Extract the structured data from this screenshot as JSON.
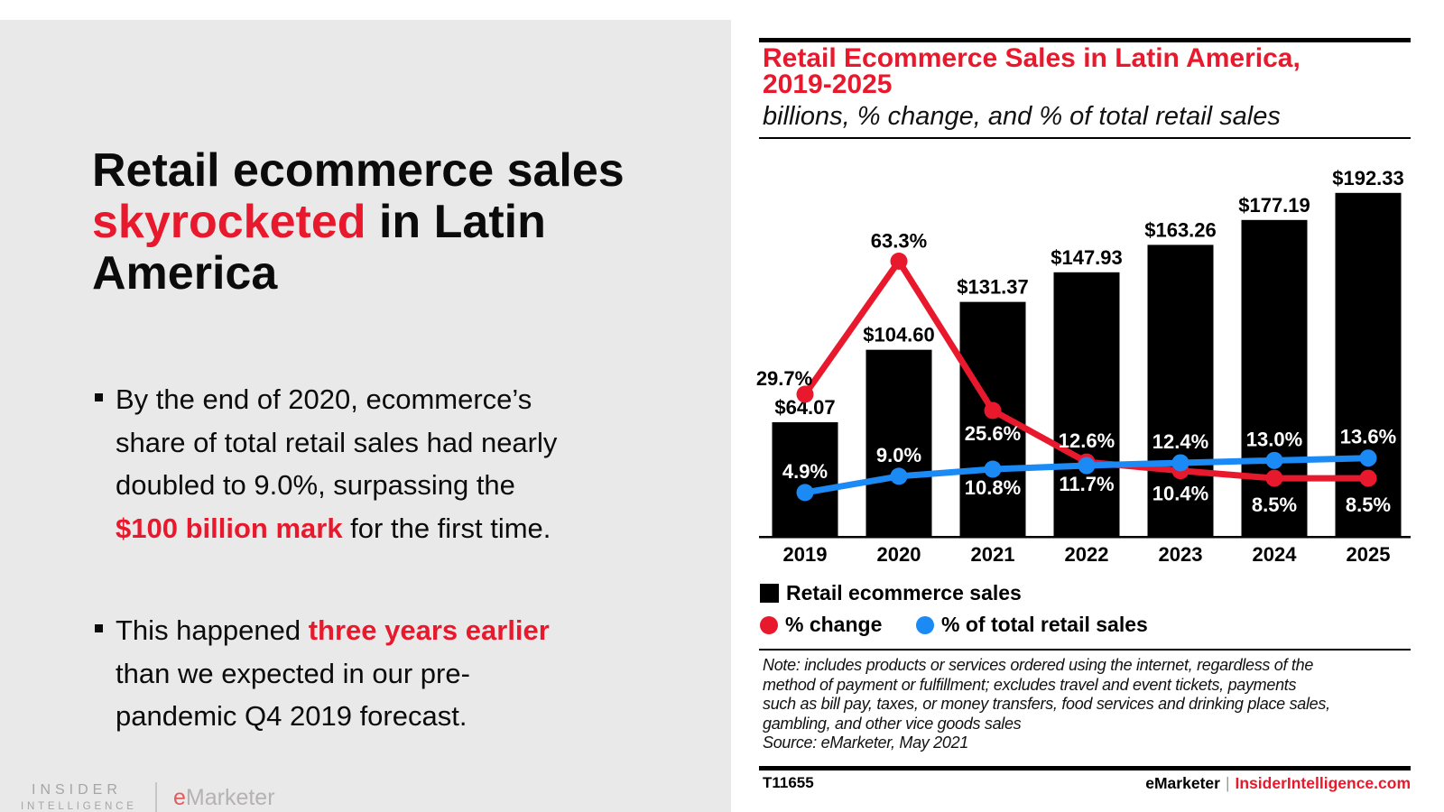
{
  "left_panel": {
    "title_segments": [
      {
        "text": "Retail ecommerce sales\n"
      },
      {
        "text": "skyrocketed",
        "highlight": true
      },
      {
        "text": " in Latin\nAmerica"
      }
    ],
    "bullets": [
      {
        "segments": [
          {
            "text": "By the end of 2020, ecommerce’s\nshare of total retail sales had nearly\ndoubled to 9.0%, surpassing the\n"
          },
          {
            "text": "$100 billion mark",
            "highlight": true
          },
          {
            "text": " for the first time."
          }
        ]
      },
      {
        "segments": [
          {
            "text": "This happened "
          },
          {
            "text": "three years earlier",
            "highlight": true
          },
          {
            "text": "\nthan we expected in our pre-\npandemic Q4 2019 forecast."
          }
        ]
      }
    ],
    "logo": {
      "line1": "INSIDER",
      "line2": "INTELLIGENCE",
      "brand_e": "e",
      "brand_rest": "Marketer"
    }
  },
  "chart_panel": {
    "title_lines": [
      "Retail Ecommerce Sales in Latin America,",
      "2019-2025"
    ],
    "subtitle": "billions, % change, and % of total retail sales",
    "note_lines": [
      "Note: includes products or services ordered using the internet, regardless of the",
      "method of payment or fulfillment; excludes travel and event tickets, payments",
      "such as bill pay, taxes, or money transfers, food services and drinking place sales,",
      "gambling, and other vice goods sales",
      "Source: eMarketer, May 2021"
    ],
    "footer": {
      "id": "T11655",
      "brand": "eMarketer",
      "separator": "|",
      "site": "InsiderIntelligence.com"
    }
  },
  "chart_data": {
    "type": "bar+line combo",
    "categories": [
      "2019",
      "2020",
      "2021",
      "2022",
      "2023",
      "2024",
      "2025"
    ],
    "series": [
      {
        "name": "Retail ecommerce sales",
        "type": "bar",
        "color": "#000000",
        "values": [
          64.07,
          104.6,
          131.37,
          147.93,
          163.26,
          177.19,
          192.33
        ],
        "labels": [
          "$64.07",
          "$104.60",
          "$131.37",
          "$147.93",
          "$163.26",
          "$177.19",
          "$192.33"
        ]
      },
      {
        "name": "% change",
        "type": "line",
        "color": "#e8192c",
        "values": [
          29.7,
          63.3,
          25.6,
          12.6,
          10.4,
          8.5,
          8.5
        ],
        "labels": [
          "29.7%",
          "63.3%",
          "25.6%",
          "12.6%",
          "10.4%",
          "8.5%",
          "8.5%"
        ]
      },
      {
        "name": "% of total retail sales",
        "type": "line",
        "color": "#1b8af5",
        "values": [
          4.9,
          9.0,
          10.8,
          11.7,
          12.4,
          13.0,
          13.6
        ],
        "labels": [
          "4.9%",
          "9.0%",
          "10.8%",
          "11.7%",
          "12.4%",
          "13.0%",
          "13.6%"
        ]
      }
    ],
    "units": "billions of US dollars",
    "grid": false,
    "legend_position": "bottom-left",
    "value_label_color": "#000000",
    "on_bar_label_color": "#ffffff"
  }
}
